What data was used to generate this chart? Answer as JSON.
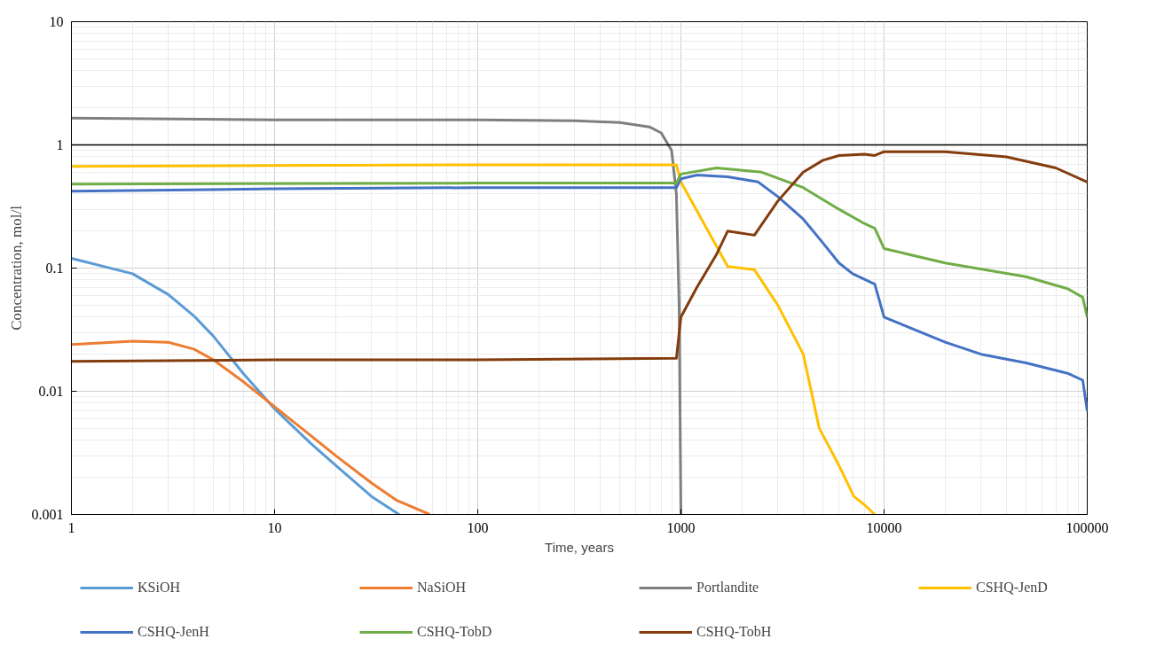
{
  "chart_data": {
    "type": "line",
    "xlabel": "Time, years",
    "ylabel": "Concentration, mol/l",
    "log": "xy",
    "grid": true,
    "legend": "bottom",
    "line_style": "solid",
    "marker": "none",
    "xlim": [
      1,
      100000
    ],
    "xticks": [
      1,
      10,
      100,
      1000,
      10000,
      100000
    ],
    "ylim": [
      0.001,
      10
    ],
    "yticks": [
      0.001,
      0.01,
      0.1,
      1,
      10
    ],
    "ref_lines": [
      {
        "axis": "y",
        "value": 1,
        "color": "#000000"
      }
    ],
    "series": [
      {
        "name": "KSiOH",
        "color": "#5b9bd5",
        "x": [
          1,
          2,
          3,
          4,
          5,
          7,
          10,
          15,
          20,
          30,
          41
        ],
        "values": [
          0.12,
          0.09,
          0.061,
          0.041,
          0.028,
          0.014,
          0.0072,
          0.0038,
          0.0025,
          0.0014,
          0.001
        ]
      },
      {
        "name": "NaSiOH",
        "color": "#ed7d31",
        "x": [
          1,
          2,
          3,
          4,
          5,
          7,
          10,
          15,
          20,
          30,
          40,
          58
        ],
        "values": [
          0.024,
          0.0255,
          0.025,
          0.022,
          0.018,
          0.012,
          0.0075,
          0.0044,
          0.003,
          0.0018,
          0.0013,
          0.001
        ]
      },
      {
        "name": "Portlandite",
        "color": "#7f7f7f",
        "x": [
          1,
          10,
          100,
          300,
          500,
          700,
          800,
          900,
          950,
          980,
          1000
        ],
        "values": [
          1.65,
          1.6,
          1.6,
          1.57,
          1.52,
          1.4,
          1.25,
          0.9,
          0.4,
          0.05,
          0.001
        ]
      },
      {
        "name": "CSHQ-JenD",
        "color": "#ffc000",
        "x": [
          1,
          10,
          100,
          950,
          1000,
          1700,
          2300,
          3000,
          4000,
          4800,
          6000,
          7100,
          8000,
          9000
        ],
        "values": [
          0.67,
          0.68,
          0.69,
          0.69,
          0.5,
          0.103,
          0.097,
          0.05,
          0.02,
          0.005,
          0.0025,
          0.0014,
          0.0012,
          0.001
        ]
      },
      {
        "name": "CSHQ-JenH",
        "color": "#4472c4",
        "x": [
          1,
          10,
          100,
          950,
          1000,
          1200,
          1700,
          2400,
          3000,
          4000,
          5000,
          6000,
          7000,
          9000,
          10000,
          20000,
          30000,
          50000,
          80000,
          95000,
          100000
        ],
        "values": [
          0.42,
          0.44,
          0.45,
          0.45,
          0.53,
          0.57,
          0.55,
          0.5,
          0.38,
          0.25,
          0.16,
          0.11,
          0.09,
          0.074,
          0.04,
          0.025,
          0.02,
          0.017,
          0.014,
          0.0123,
          0.0069
        ]
      },
      {
        "name": "CSHQ-TobD",
        "color": "#70ad47",
        "x": [
          1,
          100,
          950,
          1000,
          1500,
          2500,
          4000,
          6000,
          8000,
          9000,
          10000,
          20000,
          50000,
          80000,
          95000,
          100000
        ],
        "values": [
          0.48,
          0.49,
          0.49,
          0.58,
          0.65,
          0.6,
          0.45,
          0.3,
          0.23,
          0.21,
          0.144,
          0.11,
          0.085,
          0.068,
          0.058,
          0.04
        ]
      },
      {
        "name": "CSHQ-TobH",
        "color": "#843c0c",
        "x": [
          1,
          10,
          100,
          950,
          1000,
          1200,
          1500,
          1700,
          2300,
          3000,
          4000,
          5000,
          6000,
          8000,
          9000,
          10000,
          20000,
          40000,
          70000,
          100000
        ],
        "values": [
          0.0175,
          0.018,
          0.018,
          0.0185,
          0.04,
          0.07,
          0.13,
          0.2,
          0.185,
          0.35,
          0.6,
          0.75,
          0.82,
          0.84,
          0.82,
          0.88,
          0.88,
          0.8,
          0.65,
          0.5
        ]
      }
    ]
  }
}
